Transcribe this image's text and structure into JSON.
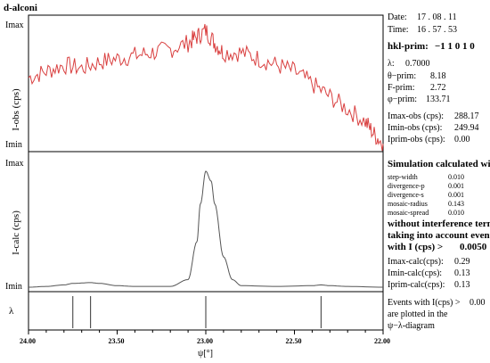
{
  "title": "d-alconi",
  "labels": {
    "imax": "Imax",
    "imin": "Imin",
    "iobs_axis": "I-obs (cps)",
    "icalc_axis": "I-calc (cps)",
    "lambda_axis": "λ",
    "x_axis": "ψ[°]"
  },
  "info": {
    "date_label": "Date:",
    "date": "17 . 08 . 11",
    "time_label": "Time:",
    "time": "16 . 57 . 53",
    "hkl_label": "hkl-prim:",
    "hkl": "−1  1  0  1  0",
    "lambda_label": "λ:",
    "lambda": "0.7000",
    "theta_label": "θ−prim:",
    "theta": "8.18",
    "f_label": "F-prim:",
    "f": "2.72",
    "psi_label": "φ−prim:",
    "psi": "133.71",
    "imax_obs_label": "Imax-obs (cps):",
    "imax_obs": "288.17",
    "imin_obs_label": "Imin-obs (cps):",
    "imin_obs": "249.94",
    "iprim_obs_label": "Iprim-obs (cps):",
    "iprim_obs": "0.00",
    "sim_title": "Simulation calculated with",
    "params": [
      {
        "label": "step-width",
        "value": "0.010"
      },
      {
        "label": "divergence-p",
        "value": "0.001"
      },
      {
        "label": "divergence-s",
        "value": "0.001"
      },
      {
        "label": "mosaic-radius",
        "value": "0.143"
      },
      {
        "label": "mosaic-spread",
        "value": "0.010"
      }
    ],
    "note_line1": "without interference term,",
    "note_line2": "taking into account events",
    "note_line3": "with I (cps) >",
    "note_threshold": "0.0050",
    "imax_calc_label": "Imax-calc(cps):",
    "imax_calc": "0.29",
    "imin_calc_label": "Imin-calc(cps):",
    "imin_calc": "0.13",
    "iprim_calc_label": "Iprim-calc(cps):",
    "iprim_calc": "0.13",
    "events_line1": "Events with I(cps) >",
    "events_value": "0.00",
    "events_line2": "are plotted in the",
    "events_line3": "ψ−λ-diagram"
  },
  "colors": {
    "observed": "#d94040",
    "calculated": "#555555",
    "frame": "#000000"
  },
  "chart_data": {
    "type": "line",
    "x_ticks": [
      "24.00",
      "23.50",
      "23.00",
      "22.50",
      "22.00"
    ],
    "x_tick_values": [
      24.0,
      23.5,
      23.0,
      22.5,
      22.0
    ],
    "xlim": [
      24.0,
      22.0
    ],
    "x_reversed": true,
    "series": [
      {
        "id": "observed",
        "ylim": [
          249.94,
          288.17
        ],
        "x": [
          24.0,
          23.9,
          23.8,
          23.7,
          23.6,
          23.5,
          23.4,
          23.3,
          23.2,
          23.1,
          23.05,
          23.0,
          22.95,
          22.9,
          22.8,
          22.7,
          22.6,
          22.5,
          22.4,
          22.3,
          22.2,
          22.1,
          22.05,
          22.0
        ],
        "values": [
          272,
          274,
          276,
          275,
          277,
          278,
          279,
          280,
          281,
          283,
          285,
          287,
          283,
          280,
          280,
          278,
          276,
          274,
          270,
          266,
          262,
          258,
          254,
          251
        ]
      },
      {
        "id": "calculated",
        "ylim": [
          0.13,
          0.29
        ],
        "x": [
          24.0,
          23.9,
          23.8,
          23.75,
          23.65,
          23.6,
          23.5,
          23.4,
          23.2,
          23.1,
          23.05,
          23.03,
          23.0,
          22.97,
          22.95,
          22.9,
          22.85,
          22.8,
          22.6,
          22.4,
          22.35,
          22.3,
          22.2,
          22.0
        ],
        "values": [
          0.13,
          0.131,
          0.133,
          0.135,
          0.136,
          0.135,
          0.132,
          0.131,
          0.131,
          0.14,
          0.19,
          0.24,
          0.283,
          0.27,
          0.24,
          0.17,
          0.14,
          0.132,
          0.131,
          0.132,
          0.133,
          0.132,
          0.131,
          0.13
        ]
      }
    ],
    "events_x": [
      23.75,
      23.65,
      23.0,
      22.35
    ]
  }
}
